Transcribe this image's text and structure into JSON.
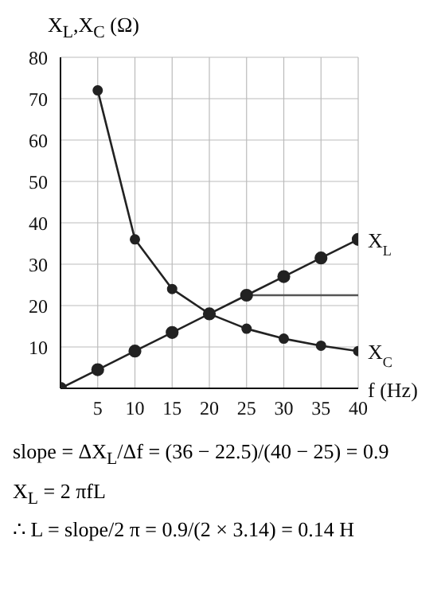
{
  "chart_data": {
    "type": "line",
    "ylabel": "X$_{L}$,X$_{C}$ (Ω)",
    "xlabel": "f (Hz)",
    "xlim": [
      0,
      40
    ],
    "xticks": [
      5,
      10,
      15,
      20,
      25,
      30,
      35,
      40
    ],
    "ylim": [
      0,
      80
    ],
    "yticks": [
      10,
      20,
      30,
      40,
      50,
      60,
      70,
      80
    ],
    "grid": true,
    "marker": "circle",
    "line_style": "solid",
    "series": [
      {
        "name": "X$_{L}$",
        "color": "#222222",
        "x": [
          0,
          5,
          10,
          15,
          20,
          25,
          30,
          35,
          40
        ],
        "values": [
          0,
          4.5,
          9,
          13.5,
          18,
          22.5,
          27,
          31.5,
          36
        ]
      },
      {
        "name": "X$_{C}$",
        "color": "#222222",
        "x": [
          5,
          10,
          15,
          20,
          25,
          30,
          35,
          40
        ],
        "values": [
          72,
          36,
          24,
          18,
          14.4,
          12,
          10.3,
          9
        ]
      },
      {
        "color": "#555555",
        "x": [
          25,
          40
        ],
        "values": [
          22.5,
          22.5
        ],
        "marker": "none"
      }
    ],
    "annotations": [
      "slope = ΔX$_{L}$/Δf = (36 − 22.5)/(40 − 25) = 0.9",
      "X$_{L}$ = 2 πfL",
      "∴ L = slope/2 π = 0.9/(2 × 3.14) = 0.14 H"
    ]
  }
}
